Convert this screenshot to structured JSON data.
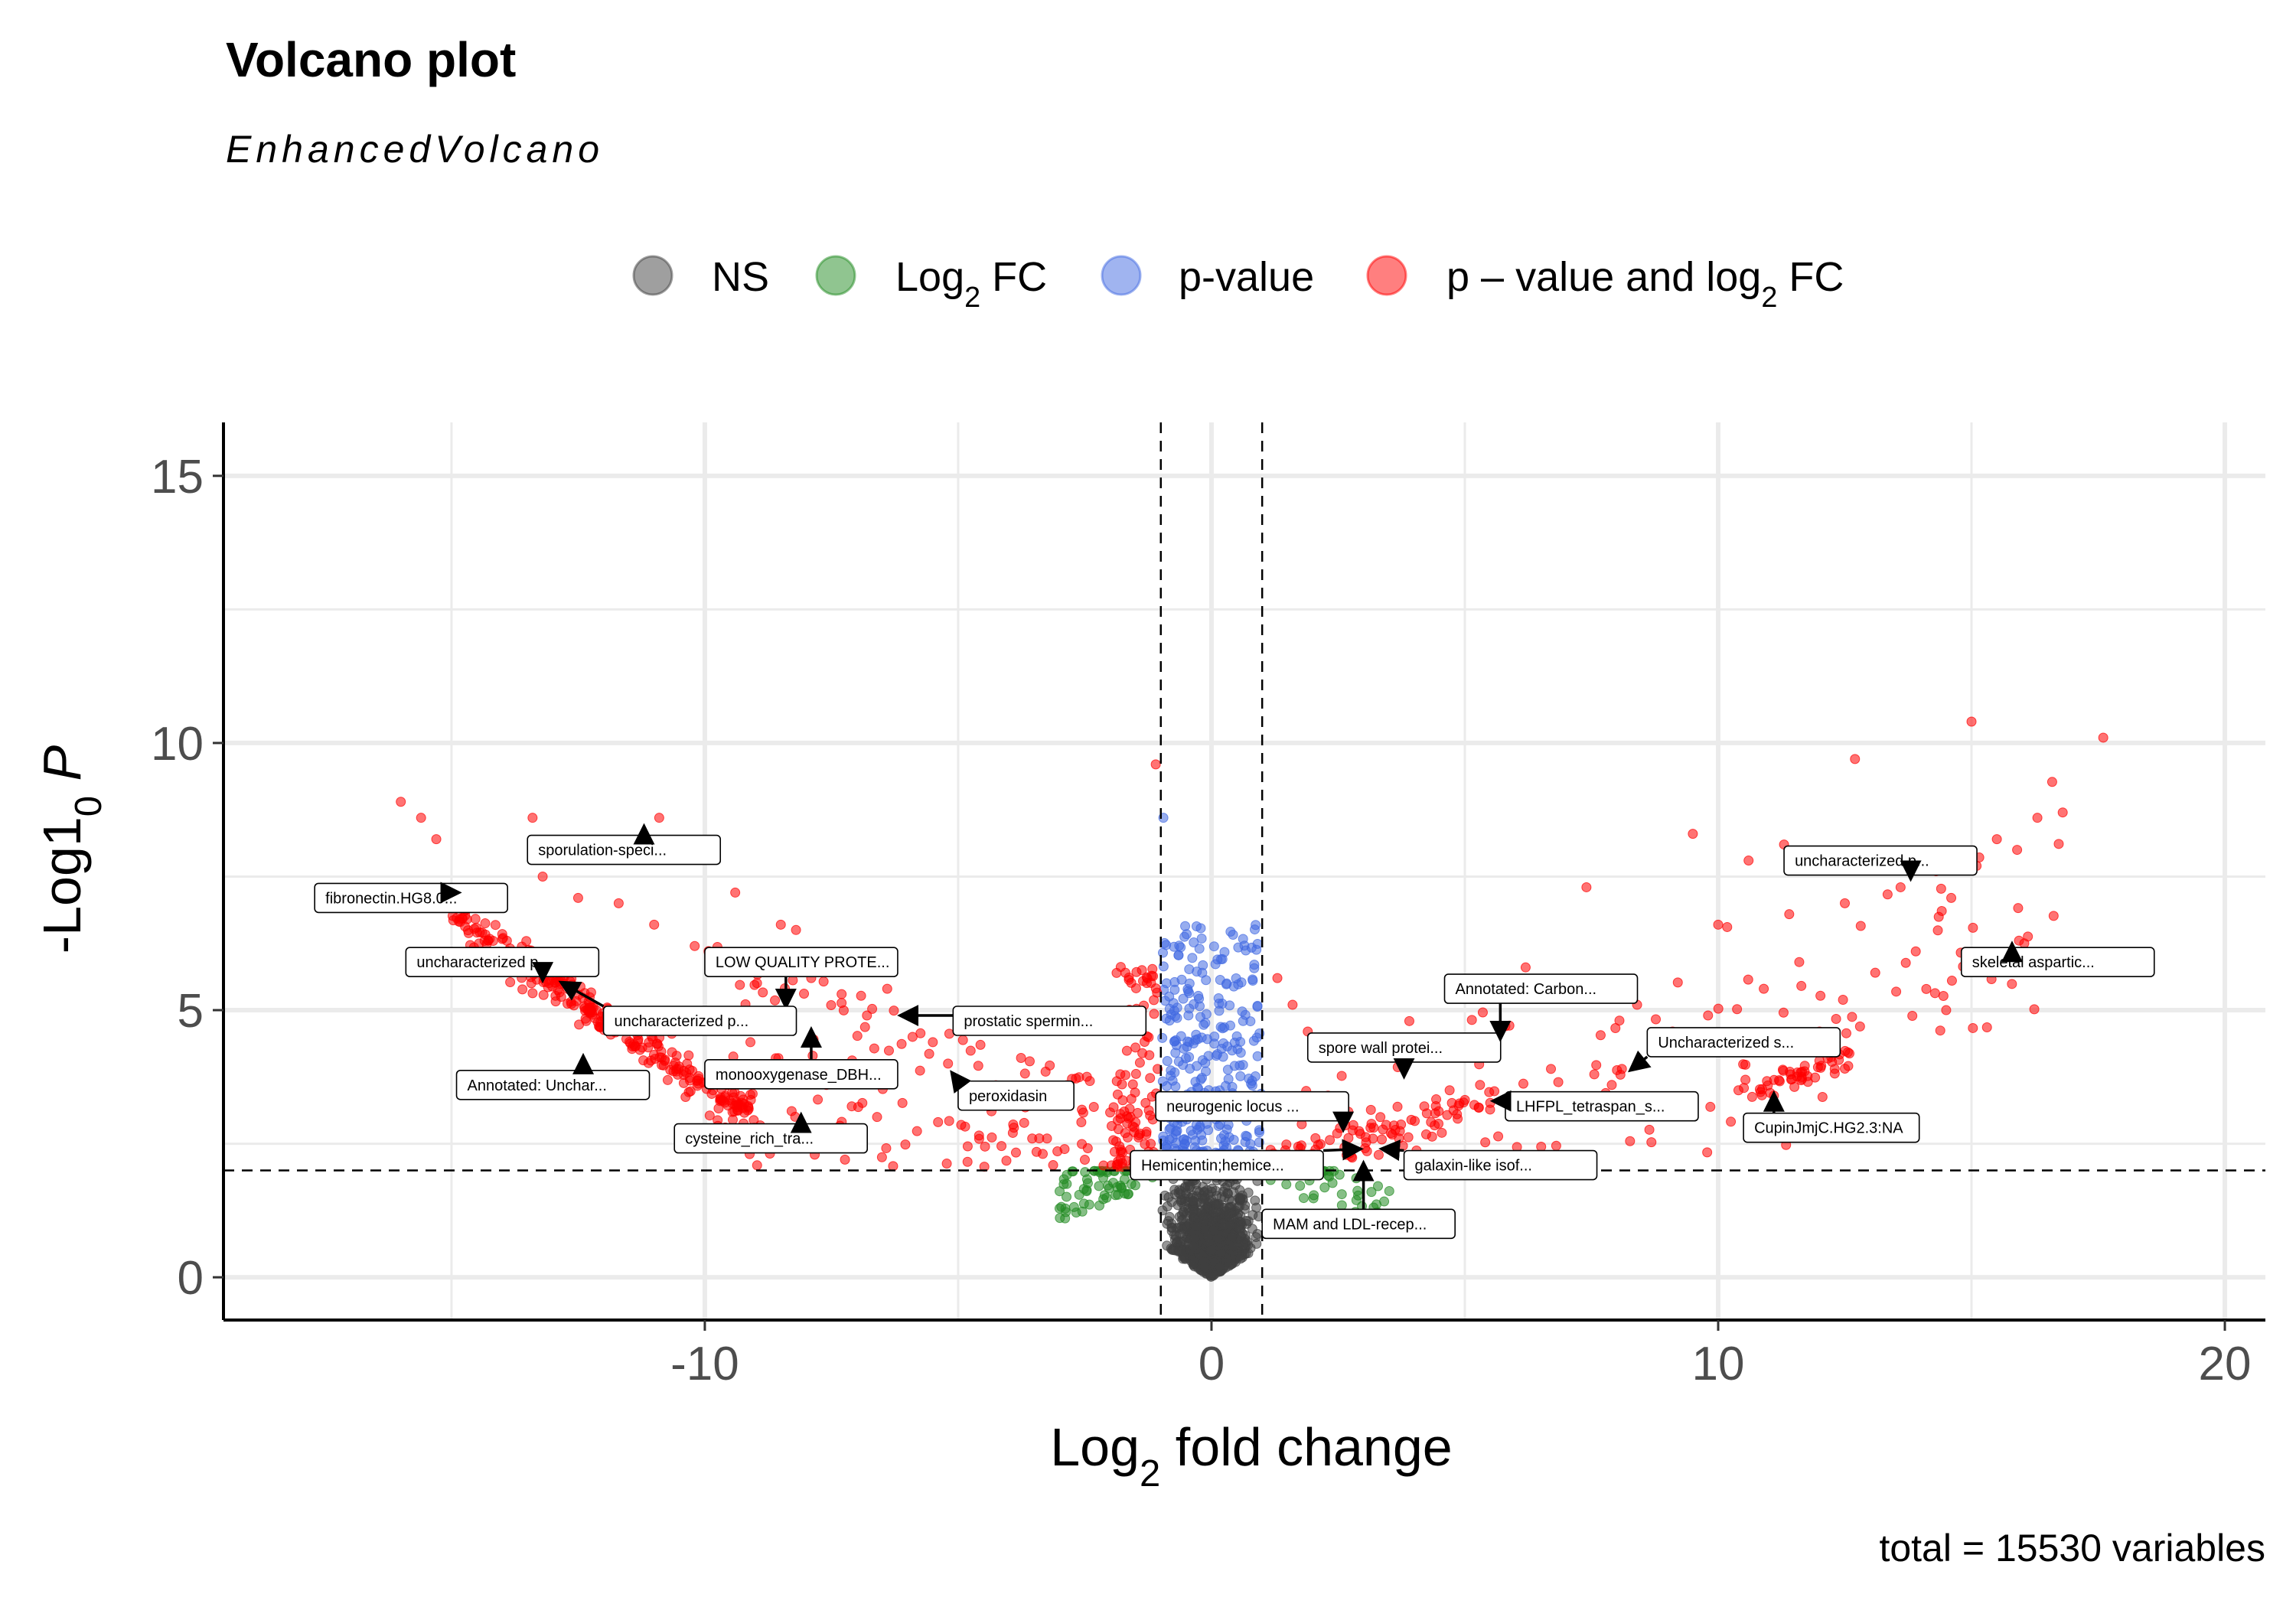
{
  "chart_data": {
    "type": "scatter",
    "title": "Volcano plot",
    "subtitle": "EnhancedVolcano",
    "xlabel": "Log2 fold change",
    "ylabel": "-Log10 P",
    "caption": "total = 15530 variables",
    "xlim": [
      -19.5,
      20.8
    ],
    "ylim": [
      -0.8,
      16.0
    ],
    "x_ticks": [
      -10,
      0,
      10,
      20
    ],
    "y_ticks": [
      0,
      5,
      10,
      15
    ],
    "x_tick_labels": [
      "-10",
      "0",
      "10",
      "20"
    ],
    "y_tick_labels": [
      "0",
      "5",
      "10",
      "15"
    ],
    "grid": true,
    "legend_position": "top",
    "fc_cutoff": 1,
    "p_cutoff_log10": 2,
    "colors": {
      "NS": "#404040",
      "Log2 FC": "#228B22",
      "p-value": "#4169E1",
      "p-value and log2 FC": "#FF0000"
    },
    "legend": [
      {
        "key": "NS",
        "label": "NS",
        "color": "#404040"
      },
      {
        "key": "FC",
        "label": "Log2 FC",
        "color": "#228B22"
      },
      {
        "key": "P",
        "label": "p-value",
        "color": "#4169E1"
      },
      {
        "key": "FC_P",
        "label": "p – value and log2 FC",
        "color": "#FF0000"
      }
    ],
    "highlighted_points": [
      {
        "x": -16.0,
        "y": 8.9
      },
      {
        "x": -15.6,
        "y": 8.6
      },
      {
        "x": -15.3,
        "y": 8.2
      },
      {
        "x": -13.4,
        "y": 8.6
      },
      {
        "x": -10.9,
        "y": 8.6
      },
      {
        "x": -10.0,
        "y": 7.9
      },
      {
        "x": -9.4,
        "y": 7.2
      },
      {
        "x": -13.2,
        "y": 7.5
      },
      {
        "x": -12.5,
        "y": 7.1
      },
      {
        "x": -11.7,
        "y": 7.0
      },
      {
        "x": -11.0,
        "y": 6.6
      },
      {
        "x": -10.2,
        "y": 6.2
      },
      {
        "x": -8.5,
        "y": 6.6
      },
      {
        "x": -8.2,
        "y": 6.5
      },
      {
        "x": -7.9,
        "y": 5.6
      },
      {
        "x": -7.3,
        "y": 5.3
      },
      {
        "x": -6.8,
        "y": 4.9
      },
      {
        "x": -6.4,
        "y": 5.4
      },
      {
        "x": -5.9,
        "y": 4.5
      },
      {
        "x": -5.5,
        "y": 4.4
      },
      {
        "x": -5.2,
        "y": 4.0
      },
      {
        "x": -4.9,
        "y": 3.5
      },
      {
        "x": -4.4,
        "y": 3.2
      },
      {
        "x": -3.9,
        "y": 2.8
      },
      {
        "x": -3.4,
        "y": 2.6
      },
      {
        "x": -2.9,
        "y": 2.4
      },
      {
        "x": -2.5,
        "y": 2.2
      },
      {
        "x": -1.7,
        "y": 5.7
      },
      {
        "x": -1.5,
        "y": 4.3
      },
      {
        "x": -1.8,
        "y": 3.8
      },
      {
        "x": -1.6,
        "y": 3.0
      },
      {
        "x": -1.2,
        "y": 2.5
      },
      {
        "x": -1.1,
        "y": 9.6
      },
      {
        "x": -9.1,
        "y": 4.4
      },
      {
        "x": -8.6,
        "y": 4.1
      },
      {
        "x": -7.6,
        "y": 3.6
      },
      {
        "x": -7.1,
        "y": 3.2
      },
      {
        "x": -6.6,
        "y": 3.0
      },
      {
        "x": -9.7,
        "y": 3.3
      },
      {
        "x": 1.3,
        "y": 5.6
      },
      {
        "x": 1.6,
        "y": 5.1
      },
      {
        "x": 1.9,
        "y": 4.6
      },
      {
        "x": 2.3,
        "y": 3.4
      },
      {
        "x": 2.7,
        "y": 3.1
      },
      {
        "x": 3.2,
        "y": 2.8
      },
      {
        "x": 3.7,
        "y": 2.6
      },
      {
        "x": 4.2,
        "y": 3.2
      },
      {
        "x": 4.7,
        "y": 3.5
      },
      {
        "x": 5.3,
        "y": 3.6
      },
      {
        "x": 5.8,
        "y": 4.7
      },
      {
        "x": 6.2,
        "y": 5.8
      },
      {
        "x": 6.7,
        "y": 3.9
      },
      {
        "x": 7.4,
        "y": 7.3
      },
      {
        "x": 7.9,
        "y": 3.6
      },
      {
        "x": 8.4,
        "y": 5.1
      },
      {
        "x": 9.1,
        "y": 4.6
      },
      {
        "x": 9.5,
        "y": 8.3
      },
      {
        "x": 10.0,
        "y": 6.6
      },
      {
        "x": 10.6,
        "y": 7.8
      },
      {
        "x": 10.9,
        "y": 5.4
      },
      {
        "x": 11.3,
        "y": 8.1
      },
      {
        "x": 11.6,
        "y": 5.9
      },
      {
        "x": 12.0,
        "y": 4.6
      },
      {
        "x": 12.5,
        "y": 7.0
      },
      {
        "x": 12.7,
        "y": 9.7
      },
      {
        "x": 13.1,
        "y": 5.7
      },
      {
        "x": 13.6,
        "y": 7.3
      },
      {
        "x": 13.9,
        "y": 6.1
      },
      {
        "x": 14.3,
        "y": 7.6
      },
      {
        "x": 14.6,
        "y": 7.1
      },
      {
        "x": 15.0,
        "y": 10.4
      },
      {
        "x": 15.1,
        "y": 7.7
      },
      {
        "x": 15.5,
        "y": 8.2
      },
      {
        "x": 15.9,
        "y": 8.0
      },
      {
        "x": 16.3,
        "y": 8.6
      },
      {
        "x": 16.8,
        "y": 8.7
      },
      {
        "x": 17.6,
        "y": 10.1
      },
      {
        "x": 14.5,
        "y": 5.0
      },
      {
        "x": 10.4,
        "y": 3.5
      },
      {
        "x": 11.1,
        "y": 3.4
      },
      {
        "x": 12.3,
        "y": 3.9
      },
      {
        "x": 9.8,
        "y": 4.9
      },
      {
        "x": 8.1,
        "y": 3.9
      }
    ],
    "annotations": [
      {
        "label": "sporulation-speci...",
        "box_x": -13.5,
        "box_y": 8.0,
        "tip_x": -11.2,
        "tip_y": 8.4
      },
      {
        "label": "fibronectin.HG8.0...",
        "box_x": -17.7,
        "box_y": 7.1,
        "tip_x": -14.9,
        "tip_y": 7.2
      },
      {
        "label": "uncharacterized p...",
        "box_x": -15.9,
        "box_y": 5.9,
        "tip_x": -13.2,
        "tip_y": 5.6
      },
      {
        "label": "LOW QUALITY PROTE...",
        "box_x": -10.0,
        "box_y": 5.9,
        "tip_x": -8.4,
        "tip_y": 5.1
      },
      {
        "label": "uncharacterized p...",
        "box_x": -12.0,
        "box_y": 4.8,
        "tip_x": -12.8,
        "tip_y": 5.5
      },
      {
        "label": "prostatic spermin...",
        "box_x": -5.1,
        "box_y": 4.8,
        "tip_x": -6.1,
        "tip_y": 4.9
      },
      {
        "label": "Annotated: Unchar...",
        "box_x": -14.9,
        "box_y": 3.6,
        "tip_x": -12.4,
        "tip_y": 4.1
      },
      {
        "label": "monooxygenase_DBH...",
        "box_x": -10.0,
        "box_y": 3.8,
        "tip_x": -7.9,
        "tip_y": 4.6
      },
      {
        "label": "peroxidasin",
        "box_x": -5.0,
        "box_y": 3.4,
        "tip_x": -5.1,
        "tip_y": 3.8
      },
      {
        "label": "cysteine_rich_tra...",
        "box_x": -10.6,
        "box_y": 2.6,
        "tip_x": -8.1,
        "tip_y": 3.0
      },
      {
        "label": "neurogenic locus ...",
        "box_x": -1.1,
        "box_y": 3.2,
        "tip_x": 2.6,
        "tip_y": 2.8
      },
      {
        "label": "Hemicentin;hemice...",
        "box_x": -1.6,
        "box_y": 2.1,
        "tip_x": 2.9,
        "tip_y": 2.4
      },
      {
        "label": "MAM and LDL-recep...",
        "box_x": 1.0,
        "box_y": 1.0,
        "tip_x": 3.0,
        "tip_y": 2.1
      },
      {
        "label": "spore wall protei...",
        "box_x": 1.9,
        "box_y": 4.3,
        "tip_x": 3.8,
        "tip_y": 3.8
      },
      {
        "label": "galaxin-like isof...",
        "box_x": 3.8,
        "box_y": 2.1,
        "tip_x": 3.4,
        "tip_y": 2.4
      },
      {
        "label": "Annotated: Carbon...",
        "box_x": 4.6,
        "box_y": 5.4,
        "tip_x": 5.7,
        "tip_y": 4.5
      },
      {
        "label": "LHFPL_tetraspan_s...",
        "box_x": 5.8,
        "box_y": 3.2,
        "tip_x": 5.6,
        "tip_y": 3.3
      },
      {
        "label": "Uncharacterized s...",
        "box_x": 8.6,
        "box_y": 4.4,
        "tip_x": 8.3,
        "tip_y": 3.9
      },
      {
        "label": "uncharacterized p...",
        "box_x": 11.3,
        "box_y": 7.8,
        "tip_x": 13.8,
        "tip_y": 7.5
      },
      {
        "label": "skeletal aspartic...",
        "box_x": 14.8,
        "box_y": 5.9,
        "tip_x": 15.8,
        "tip_y": 6.2
      },
      {
        "label": "CupinJmjC.HG2.3:NA",
        "box_x": 10.5,
        "box_y": 2.8,
        "tip_x": 11.1,
        "tip_y": 3.4
      }
    ]
  }
}
